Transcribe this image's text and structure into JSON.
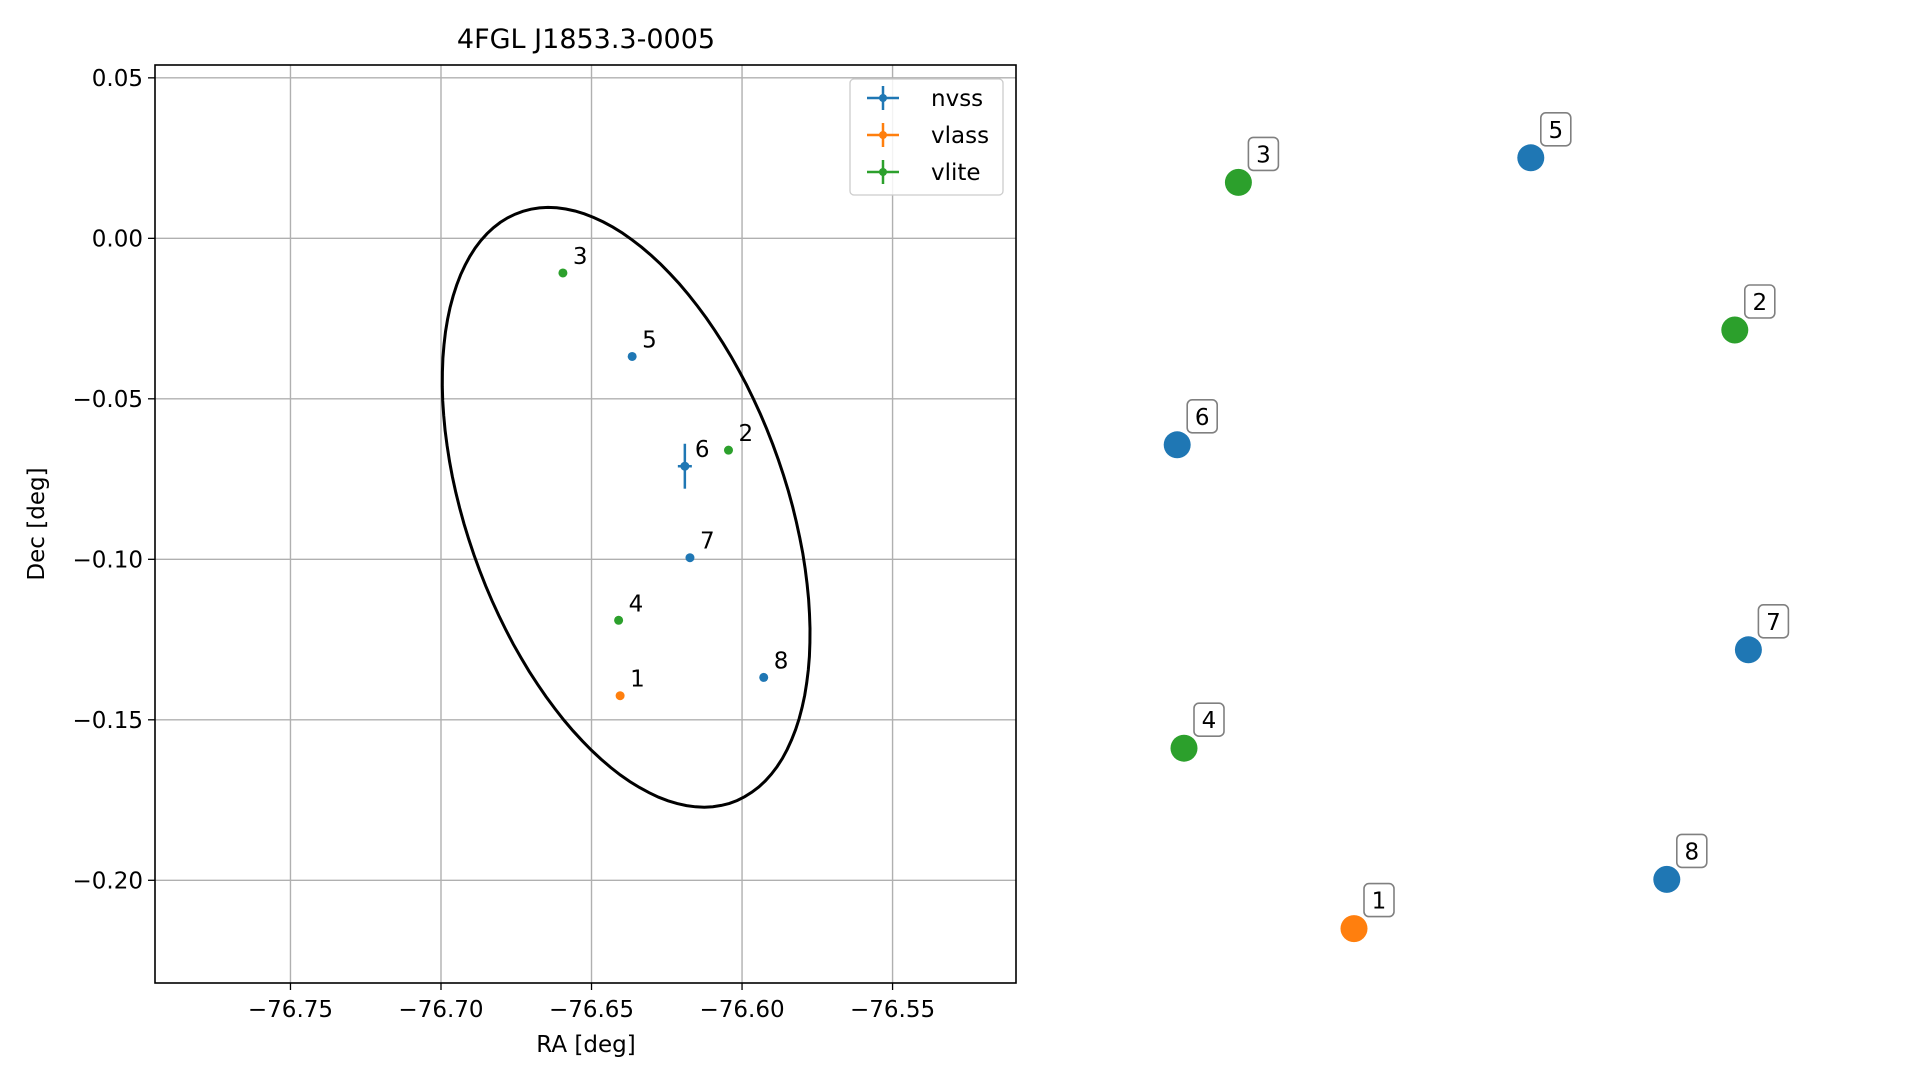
{
  "colors": {
    "nvss": "#1f77b4",
    "vlass": "#ff7f0e",
    "vlite": "#2ca02c",
    "grid": "#b0b0b0",
    "ellipse": "#000000"
  },
  "chart_data": [
    {
      "type": "scatter",
      "title": "4FGL J1853.3-0005",
      "xlabel": "RA [deg]",
      "ylabel": "Dec [deg]",
      "xlim": [
        -76.795,
        -76.509
      ],
      "ylim": [
        -0.232,
        0.054
      ],
      "grid": true,
      "legend_position": "top-right",
      "xticks": [
        -76.75,
        -76.7,
        -76.65,
        -76.6,
        -76.55
      ],
      "xtick_labels": [
        "−76.75",
        "−76.70",
        "−76.65",
        "−76.60",
        "−76.55"
      ],
      "yticks": [
        0.05,
        0.0,
        -0.05,
        -0.1,
        -0.15,
        -0.2
      ],
      "ytick_labels": [
        "0.05",
        "0.00",
        "−0.05",
        "−0.10",
        "−0.15",
        "−0.20"
      ],
      "series": [
        {
          "name": "nvss",
          "points": [
            {
              "id": "5",
              "x": -76.6365,
              "y": -0.0368
            },
            {
              "id": "6",
              "x": -76.619,
              "y": -0.071,
              "yerr": 0.007
            },
            {
              "id": "7",
              "x": -76.6173,
              "y": -0.0995
            },
            {
              "id": "8",
              "x": -76.5928,
              "y": -0.1368
            }
          ]
        },
        {
          "name": "vlass",
          "points": [
            {
              "id": "1",
              "x": -76.6405,
              "y": -0.1425
            }
          ]
        },
        {
          "name": "vlite",
          "points": [
            {
              "id": "2",
              "x": -76.6045,
              "y": -0.066
            },
            {
              "id": "3",
              "x": -76.6595,
              "y": -0.0108
            },
            {
              "id": "4",
              "x": -76.641,
              "y": -0.119
            }
          ]
        }
      ],
      "ellipse": {
        "center": [
          -76.6385,
          -0.0838
        ],
        "semi_axes": [
          0.0525,
          0.0985
        ],
        "rotation_deg": 22
      }
    },
    {
      "type": "scatter",
      "axes_visible": false,
      "points": [
        {
          "id": "1",
          "series": "vlass",
          "x": 0.3,
          "y": 0.02
        },
        {
          "id": "2",
          "series": "vlite",
          "x": 0.86,
          "y": 0.75
        },
        {
          "id": "3",
          "series": "vlite",
          "x": 0.13,
          "y": 0.93
        },
        {
          "id": "4",
          "series": "vlite",
          "x": 0.05,
          "y": 0.24
        },
        {
          "id": "5",
          "series": "nvss",
          "x": 0.56,
          "y": 0.96
        },
        {
          "id": "6",
          "series": "nvss",
          "x": 0.04,
          "y": 0.61
        },
        {
          "id": "7",
          "series": "nvss",
          "x": 0.88,
          "y": 0.36
        },
        {
          "id": "8",
          "series": "nvss",
          "x": 0.76,
          "y": 0.08
        }
      ]
    }
  ]
}
